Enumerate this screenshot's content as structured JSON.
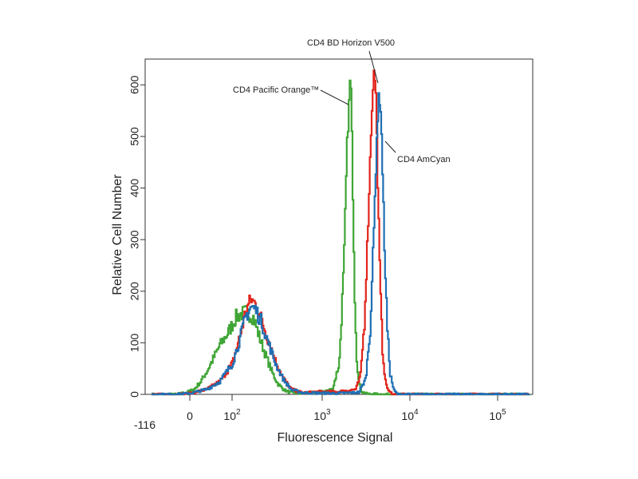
{
  "chart_data": {
    "type": "line",
    "title": "",
    "xlabel": "Fluorescence Signal",
    "ylabel": "Relative Cell Number",
    "x_scale": "logicle",
    "x_ticks": [
      {
        "value": 0,
        "base": "0",
        "exp": ""
      },
      {
        "value": 100,
        "base": "10",
        "exp": "2"
      },
      {
        "value": 1000,
        "base": "10",
        "exp": "3"
      },
      {
        "value": 10000,
        "base": "10",
        "exp": "4"
      },
      {
        "value": 100000,
        "base": "10",
        "exp": "5"
      }
    ],
    "x_min_label": "-116",
    "y_ticks": [
      0,
      100,
      200,
      300,
      400,
      500,
      600
    ],
    "ylim": [
      0,
      650
    ],
    "grid": false,
    "series": [
      {
        "name": "CD4 Pacific Orange™",
        "color": "#3fa535",
        "points": [
          [
            -40,
            0
          ],
          [
            -10,
            4
          ],
          [
            10,
            10
          ],
          [
            25,
            25
          ],
          [
            40,
            45
          ],
          [
            55,
            70
          ],
          [
            70,
            95
          ],
          [
            90,
            120
          ],
          [
            110,
            150
          ],
          [
            140,
            160
          ],
          [
            170,
            150
          ],
          [
            200,
            110
          ],
          [
            240,
            70
          ],
          [
            280,
            40
          ],
          [
            320,
            20
          ],
          [
            380,
            8
          ],
          [
            450,
            3
          ],
          [
            600,
            2
          ],
          [
            900,
            4
          ],
          [
            1300,
            10
          ],
          [
            1550,
            60
          ],
          [
            1750,
            250
          ],
          [
            1900,
            480
          ],
          [
            2000,
            560
          ],
          [
            2060,
            610
          ],
          [
            2120,
            580
          ],
          [
            2200,
            420
          ],
          [
            2320,
            200
          ],
          [
            2450,
            70
          ],
          [
            2600,
            20
          ],
          [
            2800,
            5
          ],
          [
            3200,
            1
          ],
          [
            5000,
            0
          ],
          [
            100000,
            0
          ]
        ]
      },
      {
        "name": "CD4 BD Horizon V500",
        "color": "#e2231a",
        "points": [
          [
            -40,
            0
          ],
          [
            0,
            2
          ],
          [
            40,
            10
          ],
          [
            70,
            25
          ],
          [
            100,
            60
          ],
          [
            120,
            110
          ],
          [
            140,
            160
          ],
          [
            160,
            185
          ],
          [
            180,
            175
          ],
          [
            210,
            145
          ],
          [
            250,
            105
          ],
          [
            300,
            65
          ],
          [
            370,
            30
          ],
          [
            450,
            10
          ],
          [
            600,
            3
          ],
          [
            900,
            5
          ],
          [
            1500,
            5
          ],
          [
            2400,
            10
          ],
          [
            2700,
            35
          ],
          [
            3000,
            140
          ],
          [
            3300,
            330
          ],
          [
            3550,
            500
          ],
          [
            3750,
            600
          ],
          [
            3900,
            630
          ],
          [
            4050,
            580
          ],
          [
            4250,
            420
          ],
          [
            4500,
            230
          ],
          [
            4800,
            90
          ],
          [
            5200,
            25
          ],
          [
            5700,
            5
          ],
          [
            6500,
            0
          ],
          [
            100000,
            0
          ]
        ]
      },
      {
        "name": "CD4 AmCyan",
        "color": "#1f6fb4",
        "points": [
          [
            -40,
            0
          ],
          [
            0,
            2
          ],
          [
            40,
            10
          ],
          [
            70,
            25
          ],
          [
            100,
            60
          ],
          [
            120,
            105
          ],
          [
            140,
            150
          ],
          [
            160,
            170
          ],
          [
            180,
            165
          ],
          [
            210,
            140
          ],
          [
            250,
            100
          ],
          [
            300,
            60
          ],
          [
            370,
            28
          ],
          [
            450,
            9
          ],
          [
            600,
            3
          ],
          [
            1500,
            2
          ],
          [
            2600,
            4
          ],
          [
            3100,
            30
          ],
          [
            3500,
            130
          ],
          [
            3850,
            320
          ],
          [
            4150,
            500
          ],
          [
            4350,
            570
          ],
          [
            4550,
            575
          ],
          [
            4750,
            480
          ],
          [
            5050,
            300
          ],
          [
            5450,
            130
          ],
          [
            5900,
            40
          ],
          [
            6500,
            8
          ],
          [
            7200,
            0
          ],
          [
            100000,
            0
          ]
        ]
      }
    ],
    "annotations": [
      {
        "text": "CD4 Pacific Orange™",
        "series": 0
      },
      {
        "text": "CD4 BD Horizon V500",
        "series": 1
      },
      {
        "text": "CD4 AmCyan",
        "series": 2
      }
    ]
  }
}
